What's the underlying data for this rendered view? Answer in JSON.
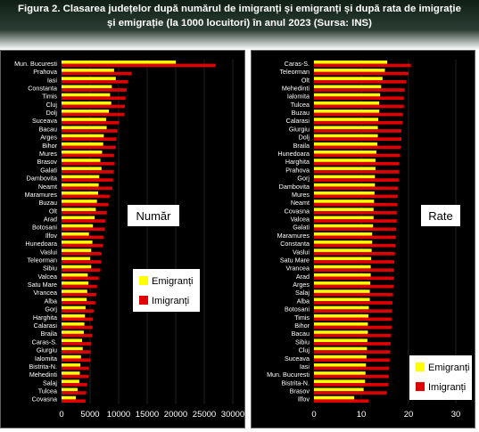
{
  "caption": {
    "line1": "Figura  2. Clasarea județelor după numărul de imigranți și emigranți și după rata de imigrație",
    "line2": "și emigrație (la 1000 locuitori) în anul 2023 (Sursa: INS)"
  },
  "colors": {
    "emigranti": "#ffff00",
    "imigranti": "#e00000",
    "background": "#000000",
    "text": "#ffffff"
  },
  "chart_data": [
    {
      "type": "bar",
      "orientation": "horizontal",
      "title": "Număr",
      "categories": [
        "Mun. Bucuresti",
        "Prahova",
        "Iasi",
        "Constanta",
        "Timis",
        "Cluj",
        "Dolj",
        "Suceava",
        "Bacau",
        "Arges",
        "Bihor",
        "Mures",
        "Brasov",
        "Galati",
        "Dambovita",
        "Neamt",
        "Maramures",
        "Buzau",
        "Olt",
        "Arad",
        "Botosani",
        "Ilfov",
        "Hunedoara",
        "Vaslui",
        "Teleorman",
        "Sibiu",
        "Valcea",
        "Satu Mare",
        "Vrancea",
        "Alba",
        "Gorj",
        "Harghita",
        "Calarasi",
        "Braila",
        "Caras-S.",
        "Giurgiu",
        "Ialomita",
        "Bistrita-N.",
        "Mehedinti",
        "Salaj",
        "Tulcea",
        "Covasna"
      ],
      "series": [
        {
          "name": "Emigranți",
          "color": "#ffff00",
          "values": [
            20000,
            9200,
            9500,
            8800,
            8500,
            8700,
            8300,
            7800,
            7900,
            7400,
            7300,
            7100,
            6800,
            7000,
            6600,
            6500,
            6400,
            6200,
            6000,
            5800,
            5500,
            4800,
            5400,
            5200,
            5000,
            5200,
            4600,
            4700,
            4500,
            4400,
            4200,
            4100,
            4000,
            3900,
            3600,
            3700,
            3400,
            3300,
            3200,
            3100,
            2800,
            2500
          ]
        },
        {
          "name": "Imigranți",
          "color": "#e00000",
          "values": [
            27000,
            12300,
            11600,
            11400,
            11200,
            11100,
            11000,
            10000,
            9800,
            9600,
            9500,
            9200,
            9300,
            9100,
            9000,
            8900,
            8400,
            8200,
            7900,
            7700,
            7500,
            7400,
            7200,
            7000,
            6900,
            6800,
            6500,
            6200,
            6100,
            5900,
            5600,
            5500,
            5400,
            5300,
            5200,
            5100,
            5000,
            4800,
            4700,
            4500,
            4300,
            4200
          ]
        }
      ],
      "xlim": [
        0,
        30000
      ],
      "xticks": [
        0,
        5000,
        10000,
        15000,
        20000,
        25000,
        30000
      ],
      "legend": [
        "Emigranți",
        "Imigranți"
      ],
      "legend_position": "center-right"
    },
    {
      "type": "bar",
      "orientation": "horizontal",
      "title": "Rate",
      "categories": [
        "Caras-S.",
        "Teleorman",
        "Olt",
        "Mehedinti",
        "Ialomita",
        "Tulcea",
        "Buzau",
        "Calarasi",
        "Giurgiu",
        "Dolj",
        "Braila",
        "Hunedoara",
        "Harghita",
        "Prahova",
        "Gorj",
        "Dambovita",
        "Mures",
        "Neamt",
        "Covasna",
        "Valcea",
        "Galati",
        "Maramures",
        "Constanta",
        "Vaslui",
        "Satu Mare",
        "Vrancea",
        "Arad",
        "Arges",
        "Salaj",
        "Alba",
        "Botosani",
        "Timis",
        "Bihor",
        "Bacau",
        "Sibiu",
        "Cluj",
        "Suceava",
        "Iasi",
        "Mun. Bucuresti",
        "Bistrita-N.",
        "Brasov",
        "Ilfov"
      ],
      "series": [
        {
          "name": "Emigranți",
          "color": "#ffff00",
          "values": [
            15.5,
            15.0,
            14.5,
            14.2,
            14.0,
            13.8,
            13.8,
            13.6,
            13.5,
            13.5,
            13.4,
            13.2,
            13.0,
            13.0,
            12.9,
            12.9,
            12.8,
            12.7,
            12.6,
            12.6,
            12.5,
            12.3,
            12.3,
            12.2,
            12.1,
            12.0,
            12.0,
            11.9,
            11.8,
            11.8,
            11.6,
            11.5,
            11.4,
            11.4,
            11.3,
            11.2,
            11.1,
            11.0,
            10.9,
            10.8,
            10.5,
            8.5
          ]
        },
        {
          "name": "Imigranți",
          "color": "#e00000",
          "values": [
            20.5,
            20.0,
            19.5,
            19.2,
            19.0,
            19.0,
            18.8,
            18.7,
            18.5,
            18.5,
            18.3,
            18.2,
            18.0,
            18.0,
            17.9,
            17.8,
            17.7,
            17.6,
            17.5,
            17.5,
            17.4,
            17.3,
            17.2,
            17.1,
            17.0,
            16.9,
            16.9,
            16.8,
            16.7,
            16.6,
            16.5,
            16.4,
            16.4,
            16.3,
            16.2,
            16.1,
            16.0,
            15.9,
            15.8,
            15.7,
            15.4,
            11.5
          ]
        }
      ],
      "xlim": [
        0,
        30
      ],
      "xticks": [
        0,
        10,
        20,
        30
      ],
      "legend": [
        "Emigranți",
        "Imigranți"
      ],
      "legend_position": "bottom-right"
    }
  ]
}
